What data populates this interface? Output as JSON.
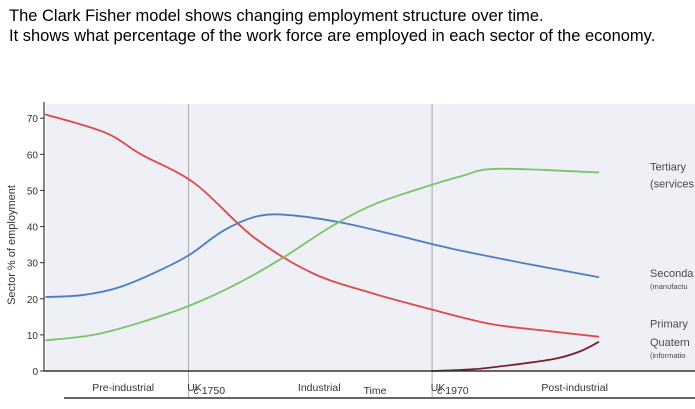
{
  "intro": {
    "line1": "The Clark Fisher model shows changing employment structure over time.",
    "line2": "It shows what percentage of the work force are employed in each sector of the economy."
  },
  "chart_data": {
    "type": "line",
    "title": "",
    "xlabel": "Time",
    "ylabel": "Sector % of employment",
    "ylim": [
      0,
      72
    ],
    "yticks": [
      0,
      10,
      20,
      30,
      40,
      50,
      60,
      70
    ],
    "xlim": [
      0,
      100
    ],
    "grid": false,
    "background": "#eef0f5",
    "stage_labels": [
      {
        "text": "Pre-industrial",
        "x": 13
      },
      {
        "text": "UK",
        "x": 25
      },
      {
        "text": "Industrial",
        "x": 46
      },
      {
        "text": "UK",
        "x": 66
      },
      {
        "text": "Post-industrial",
        "x": 89
      }
    ],
    "stage_dividers": [
      {
        "x": 24,
        "date": "c 1750"
      },
      {
        "x": 65,
        "date": "c 1970"
      }
    ],
    "series": [
      {
        "name": "Primary",
        "color": "#e04848",
        "x": [
          0,
          10,
          16,
          25,
          35,
          45,
          55,
          65,
          75,
          85,
          93
        ],
        "y": [
          71,
          66,
          60,
          52,
          37,
          27,
          21.5,
          17,
          13,
          11,
          9.5
        ]
      },
      {
        "name": "Secondary (manufacturing)",
        "color": "#4a7fc4",
        "x": [
          0,
          6,
          12,
          18,
          24,
          30,
          36,
          42,
          50,
          58,
          68,
          80,
          93
        ],
        "y": [
          20.5,
          21,
          23,
          27,
          32,
          39,
          43,
          43,
          41,
          38,
          34,
          30,
          26
        ]
      },
      {
        "name": "Tertiary (services)",
        "color": "#7ac46a",
        "x": [
          0,
          8,
          16,
          24,
          32,
          40,
          48,
          55,
          62,
          70,
          76,
          93
        ],
        "y": [
          8.5,
          10,
          13.5,
          18,
          24,
          31.5,
          40,
          46,
          50,
          54,
          56,
          55
        ]
      },
      {
        "name": "Quaternary (information)",
        "color": "#7a1f33",
        "x": [
          65,
          72,
          80,
          86,
          90,
          93
        ],
        "y": [
          0,
          0.5,
          2,
          3.5,
          5.5,
          8
        ]
      }
    ],
    "series_labels": [
      {
        "lines": [
          "Tertiary",
          "(services"
        ],
        "color": "#4a4a4a"
      },
      {
        "lines": [
          "Seconda",
          "(manufactu"
        ],
        "color": "#4a4a4a"
      },
      {
        "lines": [
          "Primary"
        ],
        "color": "#4a4a4a"
      },
      {
        "lines": [
          "Quatern",
          "(informatio"
        ],
        "color": "#4a4a4a"
      }
    ]
  }
}
